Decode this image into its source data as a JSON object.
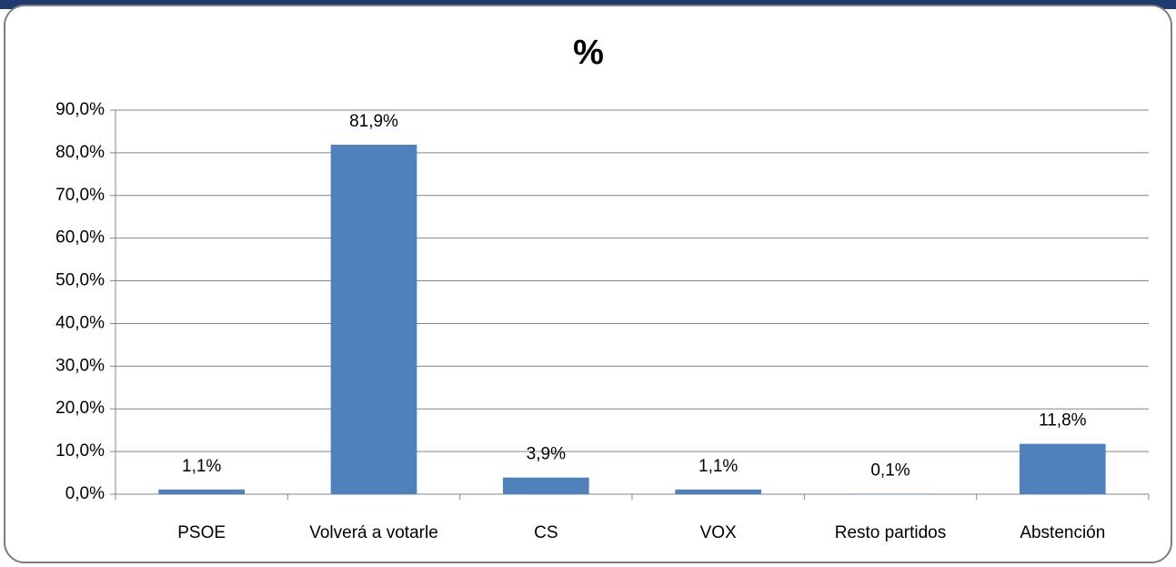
{
  "chart_data": {
    "type": "bar",
    "title": "%",
    "categories": [
      "PSOE",
      "Volverá a votarle",
      "CS",
      "VOX",
      "Resto partidos",
      "Abstención"
    ],
    "values": [
      1.1,
      81.9,
      3.9,
      1.1,
      0.1,
      11.8
    ],
    "value_labels": [
      "1,1%",
      "81,9%",
      "3,9%",
      "1,1%",
      "0,1%",
      "11,8%"
    ],
    "color": "#4f81bd",
    "ylim": [
      0,
      90
    ],
    "yticks": [
      {
        "value": 0,
        "label": "0,0%"
      },
      {
        "value": 10,
        "label": "10,0%"
      },
      {
        "value": 20,
        "label": "20,0%"
      },
      {
        "value": 30,
        "label": "30,0%"
      },
      {
        "value": 40,
        "label": "40,0%"
      },
      {
        "value": 50,
        "label": "50,0%"
      },
      {
        "value": 60,
        "label": "60,0%"
      },
      {
        "value": 70,
        "label": "70,0%"
      },
      {
        "value": 80,
        "label": "80,0%"
      },
      {
        "value": 90,
        "label": "90,0%"
      }
    ],
    "grid": true
  }
}
